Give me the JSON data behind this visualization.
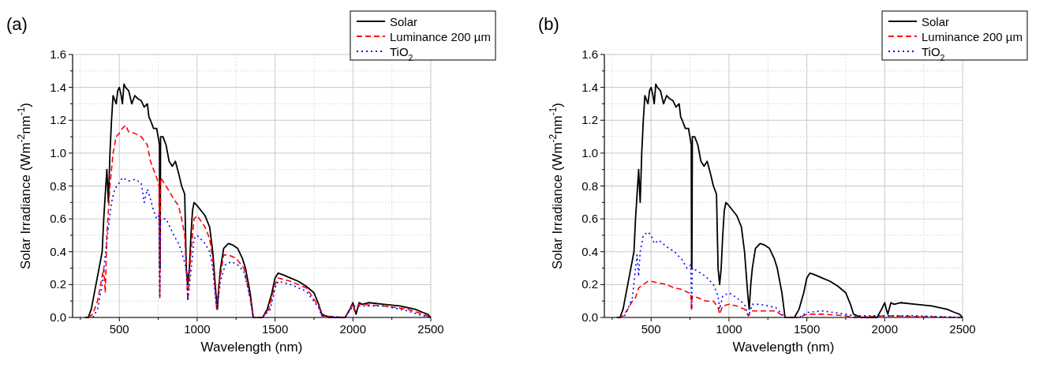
{
  "chart_data": [
    {
      "type": "line",
      "title": "(a)",
      "xlabel": "Wavelength (nm)",
      "ylabel": "Solar Irradiance (Wm$^{-2}$nm$^{-1}$)",
      "xlim": [
        200,
        2500
      ],
      "ylim": [
        0,
        1.6
      ],
      "xticks": [
        {
          "value": 250,
          "label": null
        },
        500,
        {
          "value": 750,
          "label": null
        },
        1000,
        {
          "value": 1250,
          "label": null
        },
        1500,
        {
          "value": 1750,
          "label": null
        },
        2000,
        {
          "value": 2250,
          "label": null
        },
        2500
      ],
      "yticks": [
        {
          "value": 0,
          "label": "0.0"
        },
        {
          "value": 0.1,
          "label": null
        },
        0.2,
        {
          "value": 0.3,
          "label": null
        },
        0.4,
        {
          "value": 0.5,
          "label": null
        },
        0.6,
        {
          "value": 0.7,
          "label": null
        },
        0.8,
        {
          "value": 0.9,
          "label": null
        },
        {
          "value": 1,
          "label": "1.0"
        },
        {
          "value": 1.1,
          "label": null
        },
        1.2,
        {
          "value": 1.3,
          "label": null
        },
        1.4,
        {
          "value": 1.5,
          "label": null
        },
        1.6
      ],
      "grid": true,
      "legend": "top right",
      "series": [
        {
          "name": "Solar",
          "color": "#000000",
          "line_style": "solid",
          "x": [
            280,
            300,
            320,
            350,
            370,
            390,
            400,
            410,
            420,
            430,
            440,
            450,
            460,
            480,
            490,
            500,
            510,
            520,
            530,
            540,
            560,
            580,
            600,
            620,
            640,
            660,
            680,
            690,
            700,
            720,
            740,
            758,
            760,
            762,
            765,
            780,
            800,
            820,
            840,
            860,
            880,
            900,
            920,
            930,
            940,
            950,
            960,
            970,
            980,
            1000,
            1050,
            1080,
            1100,
            1120,
            1130,
            1140,
            1150,
            1170,
            1200,
            1230,
            1260,
            1290,
            1310,
            1340,
            1360,
            1400,
            1420,
            1450,
            1480,
            1500,
            1520,
            1550,
            1600,
            1650,
            1700,
            1750,
            1780,
            1800,
            1850,
            1950,
            1980,
            2000,
            2010,
            2020,
            2040,
            2060,
            2100,
            2200,
            2300,
            2400,
            2450,
            2480,
            2500
          ],
          "values": [
            0,
            0,
            0.05,
            0.2,
            0.3,
            0.4,
            0.6,
            0.75,
            0.9,
            0.7,
            1,
            1.2,
            1.35,
            1.3,
            1.38,
            1.4,
            1.36,
            1.3,
            1.42,
            1.4,
            1.38,
            1.3,
            1.35,
            1.33,
            1.32,
            1.28,
            1.3,
            1.22,
            1.2,
            1.15,
            1.15,
            1.05,
            0.3,
            0.3,
            1.1,
            1.1,
            1.05,
            0.95,
            0.92,
            0.95,
            0.88,
            0.8,
            0.75,
            0.3,
            0.2,
            0.3,
            0.5,
            0.65,
            0.7,
            0.68,
            0.62,
            0.55,
            0.4,
            0.15,
            0.05,
            0.2,
            0.3,
            0.42,
            0.45,
            0.44,
            0.42,
            0.36,
            0.3,
            0.15,
            0,
            0,
            0,
            0.05,
            0.15,
            0.24,
            0.27,
            0.26,
            0.24,
            0.22,
            0.19,
            0.15,
            0.08,
            0.02,
            0,
            0,
            0.05,
            0.09,
            0.05,
            0.02,
            0.09,
            0.08,
            0.09,
            0.08,
            0.07,
            0.05,
            0.03,
            0.02,
            0
          ]
        },
        {
          "name": "Luminance 200 µm",
          "color": "#ff0000",
          "line_style": "dashed",
          "x": [
            300,
            330,
            360,
            380,
            400,
            410,
            420,
            440,
            460,
            480,
            500,
            520,
            540,
            560,
            600,
            640,
            680,
            700,
            720,
            740,
            755,
            760,
            765,
            800,
            850,
            880,
            900,
            920,
            940,
            960,
            980,
            1000,
            1050,
            1080,
            1100,
            1125,
            1140,
            1170,
            1200,
            1250,
            1300,
            1340,
            1360,
            1420,
            1460,
            1500,
            1520,
            1600,
            1700,
            1780,
            1800,
            1950,
            2000,
            2010,
            2040,
            2200,
            2350,
            2450,
            2500
          ],
          "values": [
            0,
            0.02,
            0.1,
            0.2,
            0.3,
            0.15,
            0.5,
            0.8,
            1,
            1.1,
            1.12,
            1.15,
            1.17,
            1.13,
            1.12,
            1.1,
            1.05,
            0.95,
            0.9,
            0.85,
            0.8,
            0.12,
            0.85,
            0.8,
            0.72,
            0.68,
            0.6,
            0.5,
            0.1,
            0.4,
            0.6,
            0.62,
            0.55,
            0.48,
            0.35,
            0.05,
            0.2,
            0.38,
            0.38,
            0.36,
            0.3,
            0.12,
            0,
            0,
            0.05,
            0.2,
            0.24,
            0.22,
            0.18,
            0.07,
            0.01,
            0,
            0.08,
            0.04,
            0.08,
            0.07,
            0.05,
            0.02,
            0
          ]
        },
        {
          "name": "TiO$_{2}$",
          "color": "#0000ff",
          "line_style": "dotted",
          "x": [
            330,
            360,
            390,
            410,
            430,
            450,
            470,
            500,
            520,
            560,
            600,
            640,
            660,
            680,
            700,
            720,
            740,
            755,
            760,
            765,
            800,
            850,
            880,
            900,
            930,
            940,
            960,
            980,
            1000,
            1050,
            1080,
            1100,
            1125,
            1150,
            1180,
            1220,
            1260,
            1300,
            1340,
            1360,
            1420,
            1470,
            1500,
            1520,
            1600,
            1700,
            1780,
            1800,
            1950,
            2000,
            2040,
            2200,
            2350,
            2450,
            2500
          ],
          "values": [
            0,
            0.05,
            0.2,
            0.38,
            0.55,
            0.7,
            0.78,
            0.82,
            0.85,
            0.83,
            0.84,
            0.82,
            0.7,
            0.78,
            0.72,
            0.65,
            0.6,
            0.62,
            0.12,
            0.6,
            0.6,
            0.5,
            0.45,
            0.4,
            0.3,
            0.1,
            0.28,
            0.48,
            0.5,
            0.45,
            0.4,
            0.3,
            0.05,
            0.22,
            0.32,
            0.34,
            0.32,
            0.28,
            0.12,
            0,
            0,
            0.05,
            0.18,
            0.22,
            0.2,
            0.16,
            0.06,
            0.01,
            0,
            0.07,
            0.07,
            0.07,
            0.04,
            0.01,
            0
          ]
        }
      ]
    },
    {
      "type": "line",
      "title": "(b)",
      "xlabel": "Wavelength (nm)",
      "ylabel": "Solar Irradiance (Wm$^{-2}$nm$^{-1}$)",
      "xlim": [
        200,
        2500
      ],
      "ylim": [
        0,
        1.6
      ],
      "xticks": [
        {
          "value": 250,
          "label": null
        },
        500,
        {
          "value": 750,
          "label": null
        },
        1000,
        {
          "value": 1250,
          "label": null
        },
        1500,
        {
          "value": 1750,
          "label": null
        },
        2000,
        {
          "value": 2250,
          "label": null
        },
        2500
      ],
      "yticks": [
        {
          "value": 0,
          "label": "0.0"
        },
        {
          "value": 0.1,
          "label": null
        },
        0.2,
        {
          "value": 0.3,
          "label": null
        },
        0.4,
        {
          "value": 0.5,
          "label": null
        },
        0.6,
        {
          "value": 0.7,
          "label": null
        },
        0.8,
        {
          "value": 0.9,
          "label": null
        },
        {
          "value": 1,
          "label": "1.0"
        },
        {
          "value": 1.1,
          "label": null
        },
        1.2,
        {
          "value": 1.3,
          "label": null
        },
        1.4,
        {
          "value": 1.5,
          "label": null
        },
        1.6
      ],
      "grid": true,
      "legend": "top right",
      "series": [
        {
          "name": "Solar",
          "color": "#000000",
          "line_style": "solid",
          "x": [
            280,
            300,
            320,
            350,
            370,
            390,
            400,
            410,
            420,
            430,
            440,
            450,
            460,
            480,
            490,
            500,
            510,
            520,
            530,
            540,
            560,
            580,
            600,
            620,
            640,
            660,
            680,
            690,
            700,
            720,
            740,
            758,
            760,
            762,
            765,
            780,
            800,
            820,
            840,
            860,
            880,
            900,
            920,
            930,
            940,
            950,
            960,
            970,
            980,
            1000,
            1050,
            1080,
            1100,
            1120,
            1130,
            1140,
            1150,
            1170,
            1200,
            1230,
            1260,
            1290,
            1310,
            1340,
            1360,
            1400,
            1420,
            1450,
            1480,
            1500,
            1520,
            1550,
            1600,
            1650,
            1700,
            1750,
            1780,
            1800,
            1850,
            1950,
            1980,
            2000,
            2010,
            2020,
            2040,
            2060,
            2100,
            2200,
            2300,
            2400,
            2450,
            2480,
            2500
          ],
          "values": [
            0,
            0,
            0.05,
            0.2,
            0.3,
            0.4,
            0.6,
            0.75,
            0.9,
            0.7,
            1,
            1.2,
            1.35,
            1.3,
            1.38,
            1.4,
            1.36,
            1.3,
            1.42,
            1.4,
            1.38,
            1.3,
            1.35,
            1.33,
            1.32,
            1.28,
            1.3,
            1.22,
            1.2,
            1.15,
            1.15,
            1.05,
            0.3,
            0.3,
            1.1,
            1.1,
            1.05,
            0.95,
            0.92,
            0.95,
            0.88,
            0.8,
            0.75,
            0.3,
            0.2,
            0.3,
            0.5,
            0.65,
            0.7,
            0.68,
            0.62,
            0.55,
            0.4,
            0.15,
            0.05,
            0.2,
            0.3,
            0.42,
            0.45,
            0.44,
            0.42,
            0.36,
            0.3,
            0.15,
            0,
            0,
            0,
            0.05,
            0.15,
            0.24,
            0.27,
            0.26,
            0.24,
            0.22,
            0.19,
            0.15,
            0.08,
            0.02,
            0,
            0,
            0.05,
            0.09,
            0.05,
            0.02,
            0.09,
            0.08,
            0.09,
            0.08,
            0.07,
            0.05,
            0.03,
            0.02,
            0
          ]
        },
        {
          "name": "Luminance 200 µm",
          "color": "#ff0000",
          "line_style": "dashed",
          "x": [
            290,
            320,
            350,
            380,
            400,
            420,
            450,
            480,
            500,
            550,
            600,
            650,
            700,
            740,
            755,
            760,
            765,
            800,
            850,
            900,
            930,
            940,
            960,
            1000,
            1050,
            1100,
            1125,
            1150,
            1200,
            1300,
            1360,
            1450,
            1500,
            1600,
            1750,
            1800,
            2000,
            2500
          ],
          "values": [
            0,
            0.01,
            0.05,
            0.1,
            0.12,
            0.18,
            0.2,
            0.22,
            0.22,
            0.21,
            0.2,
            0.18,
            0.17,
            0.15,
            0.15,
            0.04,
            0.13,
            0.12,
            0.1,
            0.1,
            0.06,
            0.02,
            0.07,
            0.08,
            0.07,
            0.05,
            0.01,
            0.04,
            0.04,
            0.04,
            0,
            0,
            0.02,
            0.02,
            0.01,
            0,
            0.01,
            0
          ]
        },
        {
          "name": "TiO$_{2}$",
          "color": "#0000ff",
          "line_style": "dotted",
          "x": [
            300,
            330,
            350,
            380,
            400,
            410,
            420,
            430,
            450,
            480,
            500,
            520,
            550,
            600,
            650,
            700,
            730,
            755,
            760,
            765,
            800,
            850,
            900,
            930,
            940,
            960,
            1000,
            1050,
            1100,
            1125,
            1150,
            1200,
            1300,
            1360,
            1450,
            1500,
            1600,
            1750,
            1800,
            2000,
            2200,
            2500
          ],
          "values": [
            0,
            0.01,
            0.05,
            0.12,
            0.3,
            0.38,
            0.25,
            0.4,
            0.5,
            0.52,
            0.5,
            0.45,
            0.47,
            0.43,
            0.4,
            0.35,
            0.3,
            0.32,
            0.05,
            0.3,
            0.28,
            0.25,
            0.2,
            0.13,
            0.05,
            0.13,
            0.15,
            0.12,
            0.08,
            0.01,
            0.08,
            0.08,
            0.06,
            0,
            0,
            0.03,
            0.04,
            0.02,
            0.01,
            0.01,
            0.01,
            0
          ]
        }
      ]
    }
  ]
}
